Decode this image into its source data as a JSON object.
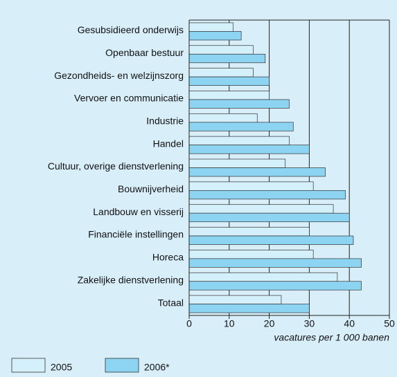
{
  "chart_data": {
    "type": "bar",
    "orientation": "horizontal",
    "categories": [
      "Gesubsidieerd onderwijs",
      "Openbaar bestuur",
      "Gezondheids- en welzijnszorg",
      "Vervoer en communicatie",
      "Industrie",
      "Handel",
      "Cultuur, overige dienstverlening",
      "Bouwnijverheid",
      "Landbouw en visserij",
      "Financiële instellingen",
      "Horeca",
      "Zakelijke dienstverlening",
      "Totaal"
    ],
    "series": [
      {
        "name": "2005",
        "color": "#d4f0fb",
        "values": [
          11,
          16,
          16,
          20,
          17,
          25,
          24,
          31,
          36,
          30,
          31,
          37,
          23
        ]
      },
      {
        "name": "2006*",
        "color": "#8dd3f2",
        "values": [
          13,
          19,
          20,
          25,
          26,
          30,
          34,
          39,
          40,
          41,
          43,
          43,
          30
        ]
      }
    ],
    "xlabel": "vacatures per 1 000 banen",
    "xlim": [
      0,
      50
    ],
    "xticks": [
      0,
      10,
      20,
      30,
      40,
      50
    ],
    "grid": true,
    "legend": "bottom-left"
  }
}
